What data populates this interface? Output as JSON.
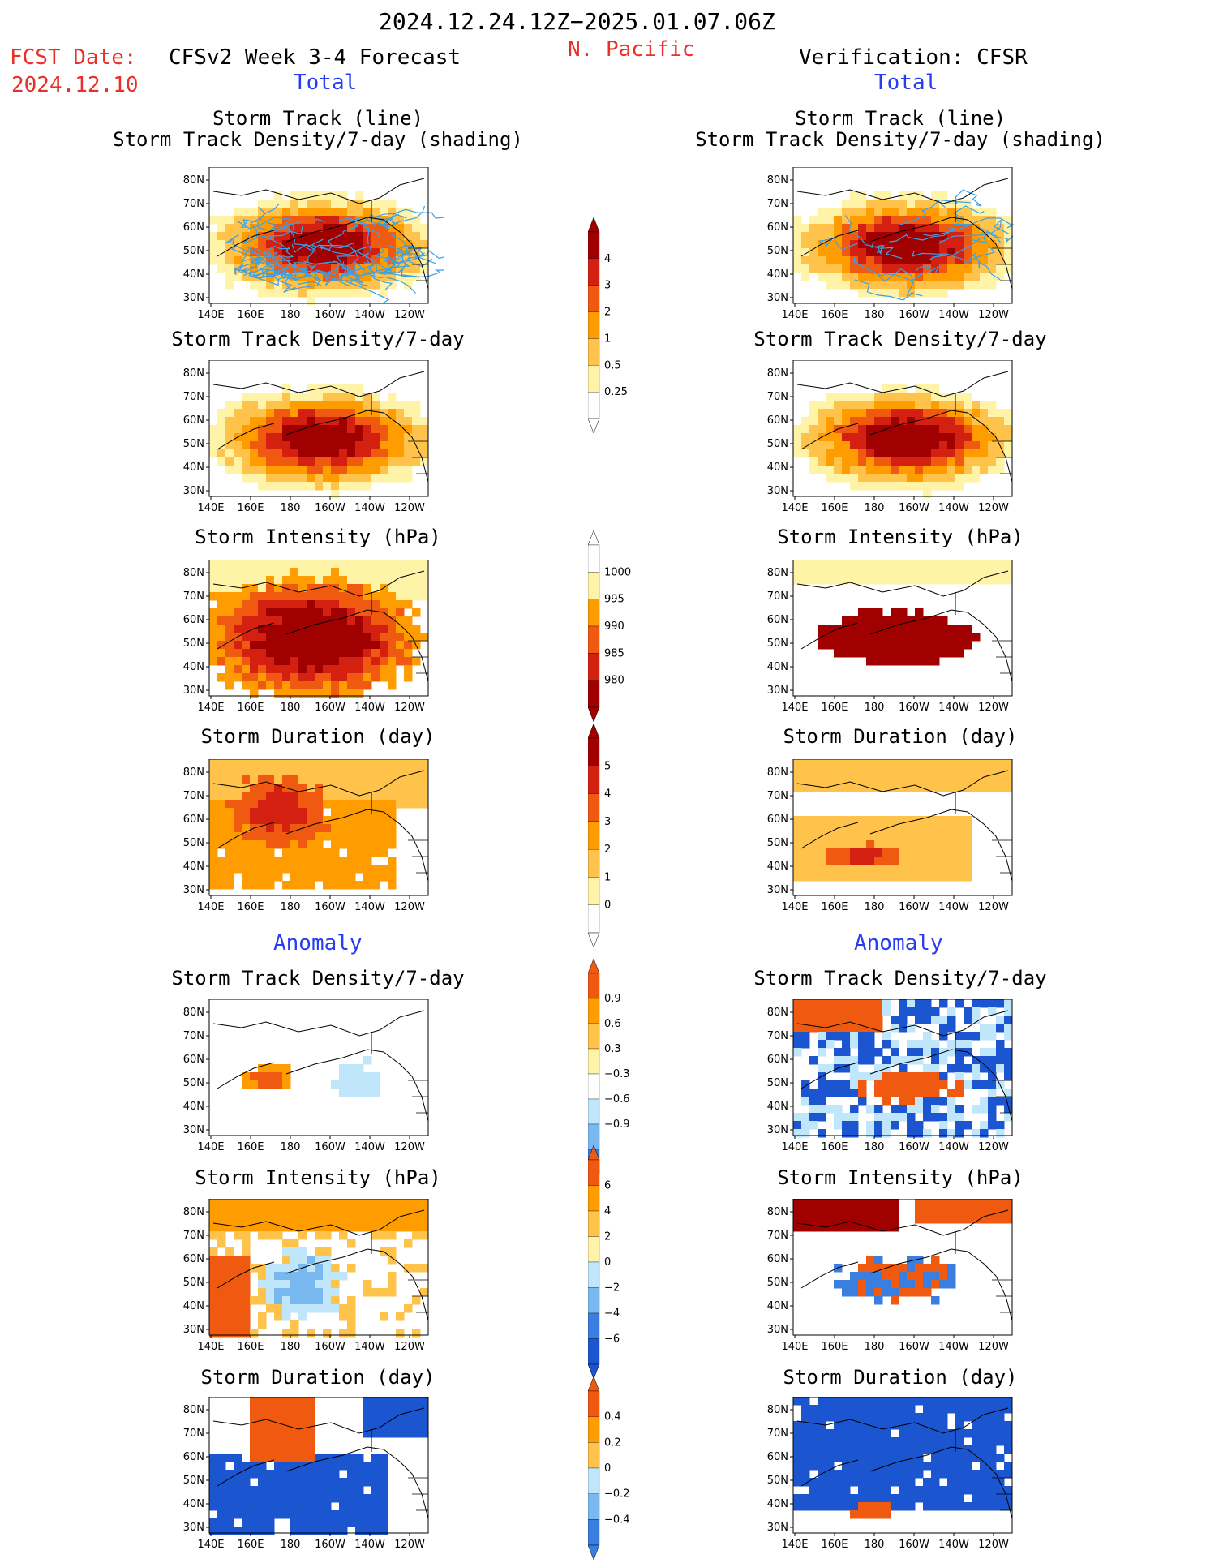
{
  "header": {
    "time_range": "2024.12.24.12Z−2025.01.07.06Z",
    "region": "N. Pacific",
    "fcst_label": "FCST Date:",
    "fcst_date": "2024.12.10",
    "left_title": "CFSv2 Week 3-4 Forecast",
    "right_title": "Verification: CFSR",
    "total_label": "Total",
    "anomaly_label": "Anomaly"
  },
  "panel_titles": {
    "track_line": "Storm Track (line)",
    "track_shading": "Storm Track Density/7-day (shading)",
    "density": "Storm Track Density/7-day",
    "intensity": "Storm Intensity (hPa)",
    "duration": "Storm Duration (day)"
  },
  "axes": {
    "lat_ticks": [
      "80N",
      "70N",
      "60N",
      "50N",
      "40N",
      "30N"
    ],
    "lon_ticks": [
      "140E",
      "160E",
      "180",
      "160W",
      "140W",
      "120W"
    ]
  },
  "colorbars": {
    "density_total": [
      "0.25",
      "0.5",
      "1",
      "2",
      "3",
      "4"
    ],
    "intensity_total": [
      "1000",
      "995",
      "990",
      "985",
      "980"
    ],
    "duration_total": [
      "0",
      "1",
      "2",
      "3",
      "4",
      "5"
    ],
    "density_anom": [
      "0.9",
      "0.6",
      "0.3",
      "−0.3",
      "−0.6",
      "−0.9"
    ],
    "intensity_anom": [
      "6",
      "4",
      "2",
      "0",
      "−2",
      "−4",
      "−6"
    ],
    "duration_anom": [
      "0.4",
      "0.2",
      "0",
      "−0.2",
      "−0.4"
    ]
  },
  "colors": {
    "pale_yellow": "#fff3a8",
    "light_orange": "#ffc24a",
    "orange": "#ff9c00",
    "red_orange": "#f05a10",
    "red": "#d42010",
    "dark_red": "#a00000",
    "light_blue": "#bfe6fa",
    "mid_blue": "#7ab8f0",
    "blue": "#3a7fe0",
    "dark_blue": "#1c55d0",
    "track_blue": "#3aa0e8"
  }
}
